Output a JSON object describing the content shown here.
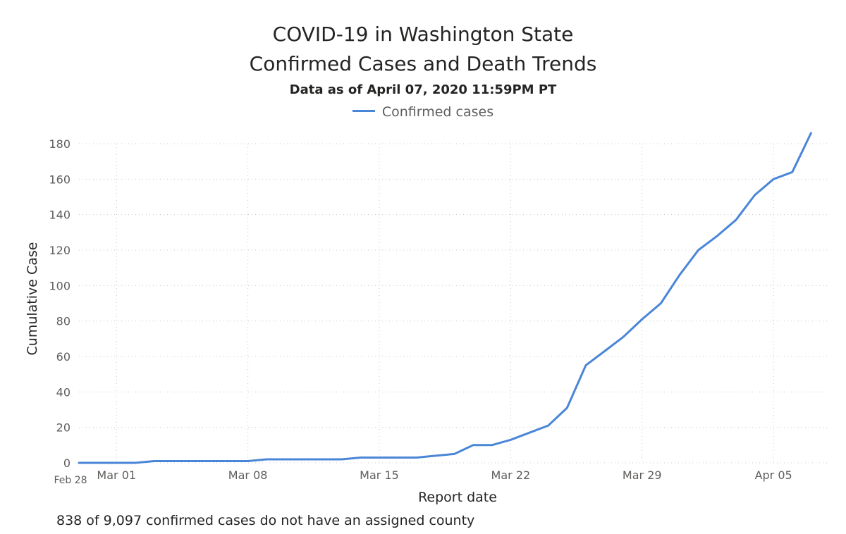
{
  "chart": {
    "title_line1": "COVID-19 in Washington State",
    "title_line2": "Confirmed Cases and Death Trends",
    "subtitle": "Data as of April 07, 2020 11:59PM PT",
    "footnote": "838 of 9,097 confirmed cases do not have an assigned county"
  },
  "colors": {
    "series": "#4a86d8",
    "grid": "#c8c8c8"
  },
  "chart_data": {
    "type": "line",
    "xlabel": "Report date",
    "ylabel": "Cumulative Case",
    "ylim": [
      0,
      180
    ],
    "yticks": [
      0,
      20,
      40,
      60,
      80,
      100,
      120,
      140,
      160,
      180
    ],
    "grid": true,
    "legend_position": "top-center",
    "xlim_day_index": [
      0,
      40
    ],
    "x_tick_labels": [
      {
        "label": "Feb 28",
        "day_index": 0,
        "small": true
      },
      {
        "label": "Mar 01",
        "day_index": 2
      },
      {
        "label": "Mar 08",
        "day_index": 9
      },
      {
        "label": "Mar 15",
        "day_index": 16
      },
      {
        "label": "Mar 22",
        "day_index": 23
      },
      {
        "label": "Mar 29",
        "day_index": 30
      },
      {
        "label": "Apr 05",
        "day_index": 37
      }
    ],
    "x_grid_day_index": [
      2,
      9,
      16,
      23,
      30,
      37
    ],
    "series": [
      {
        "name": "Confirmed cases",
        "x": [
          "Feb 28",
          "Feb 29",
          "Mar 01",
          "Mar 02",
          "Mar 03",
          "Mar 04",
          "Mar 05",
          "Mar 06",
          "Mar 07",
          "Mar 08",
          "Mar 09",
          "Mar 10",
          "Mar 11",
          "Mar 12",
          "Mar 13",
          "Mar 14",
          "Mar 15",
          "Mar 16",
          "Mar 17",
          "Mar 18",
          "Mar 19",
          "Mar 20",
          "Mar 21",
          "Mar 22",
          "Mar 23",
          "Mar 24",
          "Mar 25",
          "Mar 26",
          "Mar 27",
          "Mar 28",
          "Mar 29",
          "Mar 30",
          "Mar 31",
          "Apr 01",
          "Apr 02",
          "Apr 03",
          "Apr 04",
          "Apr 05",
          "Apr 06",
          "Apr 07"
        ],
        "values": [
          0,
          0,
          0,
          0,
          1,
          1,
          1,
          1,
          1,
          1,
          2,
          2,
          2,
          2,
          2,
          3,
          3,
          3,
          3,
          4,
          5,
          10,
          10,
          13,
          17,
          21,
          31,
          55,
          63,
          71,
          81,
          90,
          106,
          120,
          128,
          137,
          151,
          160,
          164,
          186
        ]
      }
    ]
  }
}
